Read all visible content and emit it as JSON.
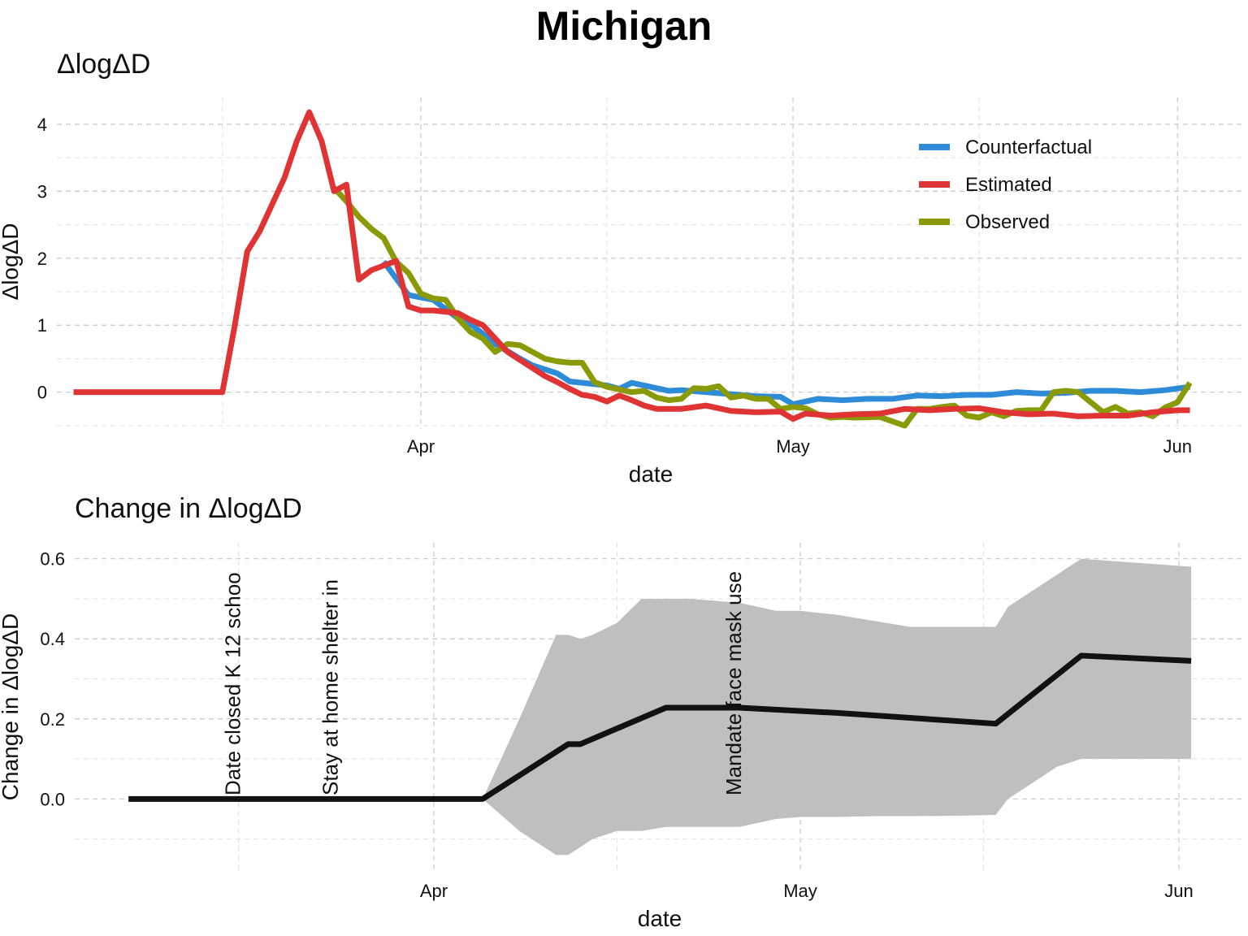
{
  "figure": {
    "title": "Michigan"
  },
  "chart_data": [
    {
      "type": "line",
      "title": "ΔlogΔD",
      "xlabel": "date",
      "ylabel": "ΔlogΔD",
      "x_tick_labels": [
        "Apr",
        "May",
        "Jun"
      ],
      "y_ticks": [
        0,
        1,
        2,
        3,
        4
      ],
      "ylim": [
        -0.55,
        4.4
      ],
      "xlim": [
        "2020-03-04",
        "2020-06-04"
      ],
      "grid": true,
      "legend_position": "top-right",
      "series": [
        {
          "name": "Counterfactual",
          "color": "#2e8bd8",
          "x": [
            "2020-03-29",
            "2020-03-31",
            "2020-04-02",
            "2020-04-04",
            "2020-04-05",
            "2020-04-07",
            "2020-04-09",
            "2020-04-10",
            "2020-04-12",
            "2020-04-13",
            "2020-04-15",
            "2020-04-16",
            "2020-04-17",
            "2020-04-18",
            "2020-04-19",
            "2020-04-21",
            "2020-04-22",
            "2020-04-24",
            "2020-04-26",
            "2020-04-28",
            "2020-04-30",
            "2020-05-01",
            "2020-05-03",
            "2020-05-05",
            "2020-05-07",
            "2020-05-09",
            "2020-05-11",
            "2020-05-13",
            "2020-05-15",
            "2020-05-17",
            "2020-05-19",
            "2020-05-21",
            "2020-05-23",
            "2020-05-25",
            "2020-05-27",
            "2020-05-29",
            "2020-05-31",
            "2020-06-02"
          ],
          "y": [
            1.95,
            1.45,
            1.38,
            1.1,
            1.02,
            0.72,
            0.5,
            0.4,
            0.28,
            0.16,
            0.12,
            0.1,
            0.05,
            0.14,
            0.1,
            0.02,
            0.03,
            0.0,
            -0.03,
            -0.06,
            -0.07,
            -0.18,
            -0.1,
            -0.12,
            -0.1,
            -0.1,
            -0.05,
            -0.06,
            -0.04,
            -0.04,
            0.0,
            -0.02,
            -0.01,
            0.02,
            0.02,
            0.0,
            0.03,
            0.08
          ]
        },
        {
          "name": "Estimated",
          "color": "#e03434",
          "x": [
            "2020-03-04",
            "2020-03-06",
            "2020-03-08",
            "2020-03-10",
            "2020-03-12",
            "2020-03-14",
            "2020-03-16",
            "2020-03-17",
            "2020-03-18",
            "2020-03-19",
            "2020-03-20",
            "2020-03-21",
            "2020-03-22",
            "2020-03-23",
            "2020-03-24",
            "2020-03-25",
            "2020-03-26",
            "2020-03-27",
            "2020-03-28",
            "2020-03-29",
            "2020-03-30",
            "2020-03-31",
            "2020-04-01",
            "2020-04-02",
            "2020-04-04",
            "2020-04-05",
            "2020-04-06",
            "2020-04-07",
            "2020-04-08",
            "2020-04-09",
            "2020-04-10",
            "2020-04-11",
            "2020-04-12",
            "2020-04-13",
            "2020-04-14",
            "2020-04-15",
            "2020-04-16",
            "2020-04-17",
            "2020-04-18",
            "2020-04-19",
            "2020-04-20",
            "2020-04-22",
            "2020-04-24",
            "2020-04-26",
            "2020-04-28",
            "2020-04-30",
            "2020-05-01",
            "2020-05-02",
            "2020-05-04",
            "2020-05-06",
            "2020-05-08",
            "2020-05-10",
            "2020-05-12",
            "2020-05-14",
            "2020-05-16",
            "2020-05-18",
            "2020-05-20",
            "2020-05-22",
            "2020-05-24",
            "2020-05-26",
            "2020-05-28",
            "2020-05-30",
            "2020-06-01",
            "2020-06-02"
          ],
          "y": [
            0,
            0,
            0,
            0,
            0,
            0,
            0,
            1.0,
            2.1,
            2.4,
            2.8,
            3.2,
            3.75,
            4.18,
            3.75,
            3.0,
            3.1,
            1.68,
            1.82,
            1.89,
            1.96,
            1.28,
            1.22,
            1.22,
            1.18,
            1.08,
            1.0,
            0.8,
            0.6,
            0.48,
            0.36,
            0.24,
            0.15,
            0.05,
            -0.04,
            -0.07,
            -0.14,
            -0.05,
            -0.12,
            -0.2,
            -0.25,
            -0.25,
            -0.2,
            -0.28,
            -0.3,
            -0.29,
            -0.4,
            -0.32,
            -0.35,
            -0.33,
            -0.32,
            -0.25,
            -0.27,
            -0.25,
            -0.24,
            -0.3,
            -0.33,
            -0.32,
            -0.36,
            -0.35,
            -0.35,
            -0.3,
            -0.27,
            -0.27
          ]
        },
        {
          "name": "Observed",
          "color": "#8a9a07",
          "x": [
            "2020-03-25",
            "2020-03-26",
            "2020-03-27",
            "2020-03-28",
            "2020-03-29",
            "2020-03-30",
            "2020-03-31",
            "2020-04-01",
            "2020-04-02",
            "2020-04-03",
            "2020-04-04",
            "2020-04-05",
            "2020-04-06",
            "2020-04-07",
            "2020-04-08",
            "2020-04-09",
            "2020-04-10",
            "2020-04-11",
            "2020-04-12",
            "2020-04-13",
            "2020-04-14",
            "2020-04-15",
            "2020-04-16",
            "2020-04-17",
            "2020-04-18",
            "2020-04-19",
            "2020-04-20",
            "2020-04-21",
            "2020-04-22",
            "2020-04-23",
            "2020-04-24",
            "2020-04-25",
            "2020-04-26",
            "2020-04-27",
            "2020-04-28",
            "2020-04-29",
            "2020-04-30",
            "2020-05-01",
            "2020-05-02",
            "2020-05-03",
            "2020-05-04",
            "2020-05-05",
            "2020-05-06",
            "2020-05-08",
            "2020-05-10",
            "2020-05-11",
            "2020-05-12",
            "2020-05-13",
            "2020-05-14",
            "2020-05-15",
            "2020-05-16",
            "2020-05-17",
            "2020-05-18",
            "2020-05-19",
            "2020-05-20",
            "2020-05-21",
            "2020-05-22",
            "2020-05-23",
            "2020-05-24",
            "2020-05-26",
            "2020-05-27",
            "2020-05-28",
            "2020-05-29",
            "2020-05-30",
            "2020-05-31",
            "2020-06-01",
            "2020-06-02"
          ],
          "y": [
            3.05,
            2.85,
            2.62,
            2.44,
            2.3,
            1.95,
            1.78,
            1.47,
            1.4,
            1.38,
            1.1,
            0.9,
            0.8,
            0.6,
            0.72,
            0.7,
            0.6,
            0.5,
            0.46,
            0.44,
            0.44,
            0.15,
            0.08,
            0.04,
            0.0,
            0.02,
            -0.08,
            -0.12,
            -0.1,
            0.06,
            0.05,
            0.09,
            -0.08,
            -0.05,
            -0.1,
            -0.1,
            -0.25,
            -0.22,
            -0.24,
            -0.33,
            -0.38,
            -0.37,
            -0.38,
            -0.37,
            -0.5,
            -0.25,
            -0.25,
            -0.22,
            -0.2,
            -0.35,
            -0.38,
            -0.3,
            -0.36,
            -0.28,
            -0.27,
            -0.27,
            0.0,
            0.02,
            0.0,
            -0.3,
            -0.22,
            -0.32,
            -0.3,
            -0.36,
            -0.23,
            -0.15,
            0.14
          ]
        }
      ]
    },
    {
      "type": "line",
      "title": "Change in ΔlogΔD",
      "xlabel": "date",
      "ylabel": "Change in ΔlogΔD",
      "x_tick_labels": [
        "Apr",
        "May",
        "Jun"
      ],
      "y_ticks": [
        0.0,
        0.2,
        0.4,
        0.6
      ],
      "y_tick_labels": [
        "0.0",
        "0.2",
        "0.4",
        "0.6"
      ],
      "ylim": [
        -0.18,
        0.64
      ],
      "xlim": [
        "2020-03-04",
        "2020-06-04"
      ],
      "grid": true,
      "annotations": [
        {
          "label": "Date closed K 12 schoo",
          "date": "2020-03-16"
        },
        {
          "label": "Stay at home  shelter in",
          "date": "2020-03-24"
        },
        {
          "label": "Mandate face mask use",
          "date": "2020-04-26"
        }
      ],
      "series": [
        {
          "name": "",
          "color": "#111111",
          "x": [
            "2020-03-07",
            "2020-03-20",
            "2020-04-05",
            "2020-04-12",
            "2020-04-13",
            "2020-04-20",
            "2020-04-26",
            "2020-05-04",
            "2020-05-17",
            "2020-05-24",
            "2020-06-02"
          ],
          "y": [
            0.0,
            0.0,
            0.0,
            0.137,
            0.137,
            0.228,
            0.228,
            0.215,
            0.188,
            0.358,
            0.345
          ]
        }
      ],
      "ribbon": {
        "color": "#bfbfbf",
        "x": [
          "2020-04-05",
          "2020-04-08",
          "2020-04-11",
          "2020-04-12",
          "2020-04-13",
          "2020-04-14",
          "2020-04-16",
          "2020-04-18",
          "2020-04-20",
          "2020-04-22",
          "2020-04-26",
          "2020-04-29",
          "2020-05-01",
          "2020-05-04",
          "2020-05-07",
          "2020-05-10",
          "2020-05-14",
          "2020-05-17",
          "2020-05-18",
          "2020-05-20",
          "2020-05-22",
          "2020-05-24",
          "2020-06-02"
        ],
        "upper": [
          0.0,
          0.2,
          0.41,
          0.41,
          0.4,
          0.41,
          0.44,
          0.5,
          0.5,
          0.5,
          0.49,
          0.47,
          0.47,
          0.46,
          0.445,
          0.43,
          0.43,
          0.43,
          0.48,
          0.52,
          0.56,
          0.6,
          0.58
        ],
        "lower": [
          0.0,
          -0.08,
          -0.14,
          -0.14,
          -0.12,
          -0.1,
          -0.08,
          -0.08,
          -0.07,
          -0.07,
          -0.07,
          -0.05,
          -0.045,
          -0.045,
          -0.043,
          -0.043,
          -0.042,
          -0.04,
          0.0,
          0.04,
          0.08,
          0.1,
          0.1
        ]
      }
    }
  ]
}
